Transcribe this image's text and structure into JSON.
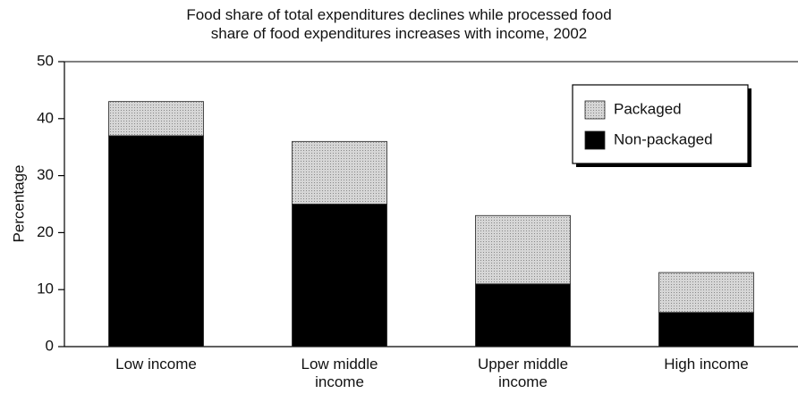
{
  "chart_data": {
    "type": "stacked_bar",
    "title": "Food share of total expenditures declines while processed food share of food expenditures increases with income, 2002",
    "ylabel": "Percentage",
    "categories": [
      "Low income",
      "Low middle income",
      "Upper middle income",
      "High income"
    ],
    "series": [
      {
        "name": "Non-packaged",
        "color": "#000000",
        "values": [
          37,
          25,
          11,
          6
        ]
      },
      {
        "name": "Packaged",
        "color": "#c4c4c4",
        "values": [
          6,
          11,
          12,
          7
        ]
      }
    ],
    "ylim": [
      0,
      50
    ],
    "yticks": [
      0,
      10,
      20,
      30,
      40,
      50
    ],
    "legend": "upper right"
  }
}
